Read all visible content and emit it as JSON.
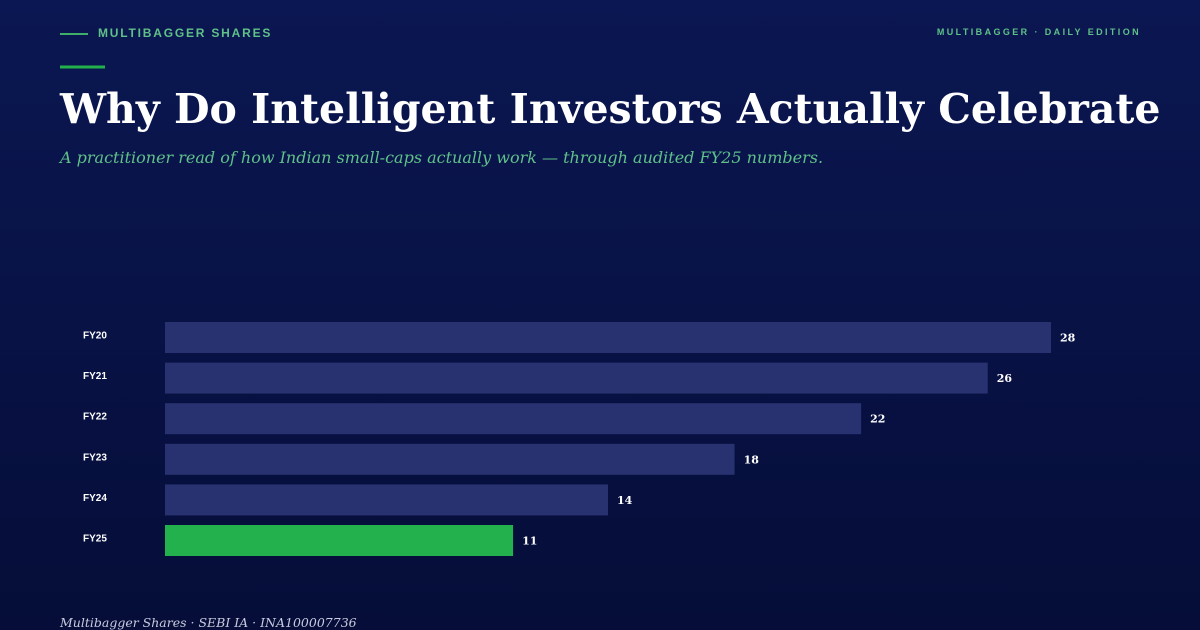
{
  "header": {
    "brand": "MULTIBAGGER SHARES",
    "edition": "MULTIBAGGER · DAILY EDITION"
  },
  "chart_data": {
    "type": "bar",
    "orientation": "horizontal",
    "title": "Why Do Intelligent Investors Actually Celebrate",
    "subtitle": "A practitioner read of how Indian small-caps actually work — through audited FY25 numbers.",
    "categories": [
      "FY20",
      "FY21",
      "FY22",
      "FY23",
      "FY24",
      "FY25"
    ],
    "values": [
      28,
      26,
      22,
      18,
      14,
      11
    ],
    "colors": [
      "#283270",
      "#283270",
      "#283270",
      "#283270",
      "#283270",
      "#22b14c"
    ],
    "xlim": [
      0,
      28
    ]
  },
  "footer": "Multibagger Shares · SEBI IA · INA100007736"
}
